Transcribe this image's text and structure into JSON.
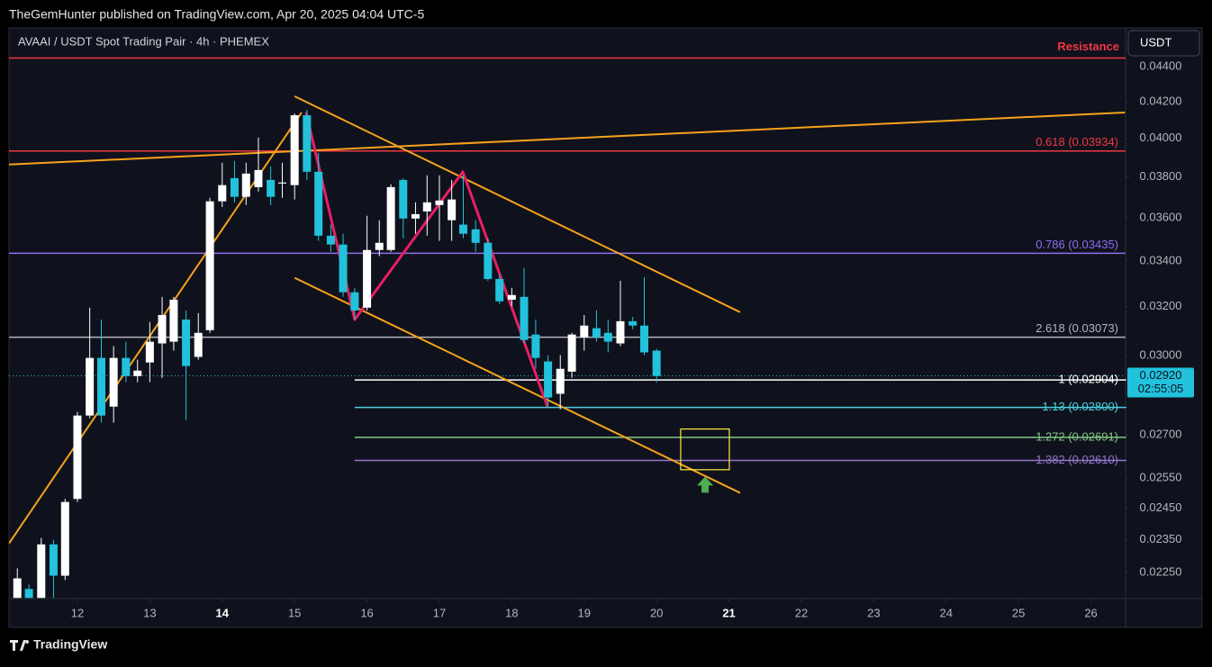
{
  "header": {
    "byline": "TheGemHunter published on TradingView.com, Apr 20, 2025 04:04 UTC-5"
  },
  "footer": {
    "logo": "TradingView"
  },
  "chart_data": {
    "type": "candlestick",
    "title": "AVAAI / USDT Spot Trading Pair · 4h · PHEMEX",
    "currency_button": "USDT",
    "log_scale": true,
    "up_color": "#ffffff",
    "down_color": "#22c1dc",
    "x": [
      11.17,
      11.33,
      11.5,
      11.67,
      11.83,
      12,
      12.17,
      12.33,
      12.5,
      12.67,
      12.83,
      13,
      13.17,
      13.33,
      13.5,
      13.67,
      13.83,
      14,
      14.17,
      14.33,
      14.5,
      14.67,
      14.83,
      15,
      15.17,
      15.33,
      15.5,
      15.67,
      15.83,
      16,
      16.17,
      16.33,
      16.5,
      16.67,
      16.83,
      17,
      17.17,
      17.33,
      17.5,
      17.67,
      17.83,
      18,
      18.17,
      18.33,
      18.5,
      18.67,
      18.83,
      19,
      19.17,
      19.33,
      19.5,
      19.67,
      19.83,
      20
    ],
    "open": [
      0.02175,
      0.02201,
      0.02175,
      0.02335,
      0.0224,
      0.0248,
      0.0277,
      0.0299,
      0.02803,
      0.0299,
      0.02919,
      0.02972,
      0.03048,
      0.03055,
      0.03146,
      0.02994,
      0.03102,
      0.0368,
      0.03795,
      0.03702,
      0.0375,
      0.03786,
      0.03768,
      0.0376,
      0.04125,
      0.03827,
      0.03516,
      0.03475,
      0.03262,
      0.03196,
      0.0345,
      0.0345,
      0.03786,
      0.03597,
      0.03631,
      0.03662,
      0.03589,
      0.03568,
      0.03546,
      0.03483,
      0.0332,
      0.0323,
      0.03242,
      0.03084,
      0.02976,
      0.02851,
      0.02936,
      0.03073,
      0.0311,
      0.03091,
      0.03048,
      0.03139,
      0.03121,
      0.03019
    ],
    "high": [
      0.02262,
      0.02214,
      0.02355,
      0.02349,
      0.0248,
      0.02783,
      0.03196,
      0.03146,
      0.03037,
      0.03055,
      0.02983,
      0.03136,
      0.03242,
      0.03242,
      0.03184,
      0.03173,
      0.03697,
      0.03873,
      0.03882,
      0.03873,
      0.04005,
      0.03855,
      0.03873,
      0.04135,
      0.04155,
      0.03924,
      0.03568,
      0.03525,
      0.03281,
      0.0361,
      0.03589,
      0.03764,
      0.03795,
      0.03675,
      0.03809,
      0.03809,
      0.03786,
      0.03809,
      0.03589,
      0.03504,
      0.03341,
      0.03281,
      0.03369,
      0.03146,
      0.03001,
      0.03001,
      0.03091,
      0.03165,
      0.03184,
      0.03146,
      0.03312,
      0.03157,
      0.03328,
      0.03026
    ],
    "low": [
      0.02175,
      0.02175,
      0.02175,
      0.02175,
      0.02227,
      0.0247,
      0.0276,
      0.02744,
      0.02744,
      0.02895,
      0.02895,
      0.02895,
      0.02912,
      0.03019,
      0.02753,
      0.02983,
      0.03091,
      0.03653,
      0.03675,
      0.03662,
      0.03728,
      0.03662,
      0.03697,
      0.03689,
      0.03786,
      0.03492,
      0.03442,
      0.03242,
      0.03146,
      0.03184,
      0.03422,
      0.03442,
      0.03504,
      0.03525,
      0.03516,
      0.03492,
      0.03492,
      0.03504,
      0.03442,
      0.03312,
      0.03211,
      0.03203,
      0.03048,
      0.02947,
      0.02803,
      0.02793,
      0.02912,
      0.03019,
      0.03055,
      0.03012,
      0.03037,
      0.03106,
      0.03001,
      0.02895
    ],
    "close": [
      0.02232,
      0.02175,
      0.02335,
      0.0224,
      0.0247,
      0.0277,
      0.0299,
      0.0277,
      0.0299,
      0.02919,
      0.0294,
      0.03055,
      0.03165,
      0.0323,
      0.02958,
      0.03091,
      0.0368,
      0.0376,
      0.03702,
      0.03818,
      0.03836,
      0.03702,
      0.03773,
      0.04125,
      0.03827,
      0.03516,
      0.03475,
      0.03262,
      0.03184,
      0.0345,
      0.03483,
      0.0375,
      0.03597,
      0.03618,
      0.03675,
      0.03684,
      0.03689,
      0.03525,
      0.03483,
      0.0332,
      0.03223,
      0.0325,
      0.03062,
      0.0299,
      0.02837,
      0.02947,
      0.03084,
      0.03121,
      0.03073,
      0.03055,
      0.03139,
      0.03121,
      0.03012,
      0.02919
    ],
    "xlim": [
      11.055,
      26.478
    ],
    "ylim": [
      0.02173,
      0.04626
    ],
    "xticks": [
      12,
      13,
      14,
      15,
      16,
      17,
      18,
      19,
      20,
      21,
      22,
      23,
      24,
      25,
      26
    ],
    "xticks_bold": [
      14,
      21
    ],
    "yticks": [
      {
        "value": 0.044,
        "label": "0.04400"
      },
      {
        "value": 0.042,
        "label": "0.04200"
      },
      {
        "value": 0.04,
        "label": "0.04000"
      },
      {
        "value": 0.038,
        "label": "0.03800"
      },
      {
        "value": 0.036,
        "label": "0.03600"
      },
      {
        "value": 0.034,
        "label": "0.03400"
      },
      {
        "value": 0.032,
        "label": "0.03200"
      },
      {
        "value": 0.03,
        "label": "0.03000"
      },
      {
        "value": 0.027,
        "label": "0.02700"
      },
      {
        "value": 0.0255,
        "label": "0.02550"
      },
      {
        "value": 0.0245,
        "label": "0.02450"
      },
      {
        "value": 0.0235,
        "label": "0.02350"
      },
      {
        "value": 0.0225,
        "label": "0.02250"
      }
    ],
    "levels": [
      {
        "label": "Resistance",
        "value": 0.0445,
        "color": "#f23645"
      },
      {
        "label": "0.618 (0.03934)",
        "value": 0.03934,
        "color": "#f23645"
      },
      {
        "label": "0.786 (0.03435)",
        "value": 0.03435,
        "color": "#8c6ff0"
      },
      {
        "label": "2.618 (0.03073)",
        "value": 0.03073,
        "color": "#b2b5be"
      },
      {
        "label": "1 (0.02904)",
        "value": 0.02904,
        "color": "#ffffff",
        "from": 15.83
      },
      {
        "label": "1.13 (0.02800)",
        "value": 0.028,
        "color": "#4dd0e1",
        "from": 15.83
      },
      {
        "label": "1.272 (0.02691)",
        "value": 0.02691,
        "color": "#81c784",
        "from": 15.83
      },
      {
        "label": "1.382 (0.02610)",
        "value": 0.0261,
        "color": "#9575cd",
        "from": 15.83
      }
    ],
    "trendlines": [
      {
        "color": "#f7a21b",
        "x": [
          11.055,
          15.097
        ],
        "y": [
          0.02338,
          0.0414
        ]
      },
      {
        "color": "#f7a21b",
        "x": [
          11.055,
          26.47
        ],
        "y": [
          0.03864,
          0.0414
        ]
      },
      {
        "color": "#f7a21b",
        "x": [
          15.0,
          21.154
        ],
        "y": [
          0.0423,
          0.03177
        ]
      },
      {
        "color": "#f7a21b",
        "x": [
          15.0,
          21.154
        ],
        "y": [
          0.03325,
          0.025
        ]
      },
      {
        "color": "#e91e63",
        "x": [
          15.159,
          15.831,
          17.323,
          18.493
        ],
        "y": [
          0.0414,
          0.03146,
          0.03827,
          0.02803
        ]
      }
    ],
    "boxes": [
      {
        "color": "#ffeb3b",
        "x": [
          20.333,
          21.005
        ],
        "y": [
          0.02578,
          0.02721
        ]
      }
    ],
    "arrows": [
      {
        "color": "#4caf50",
        "x": 20.67,
        "y": 0.02555
      }
    ],
    "last_price": {
      "value": 0.0292,
      "label": "0.02920",
      "countdown": "02:55:05",
      "color": "#22c1dc"
    }
  }
}
